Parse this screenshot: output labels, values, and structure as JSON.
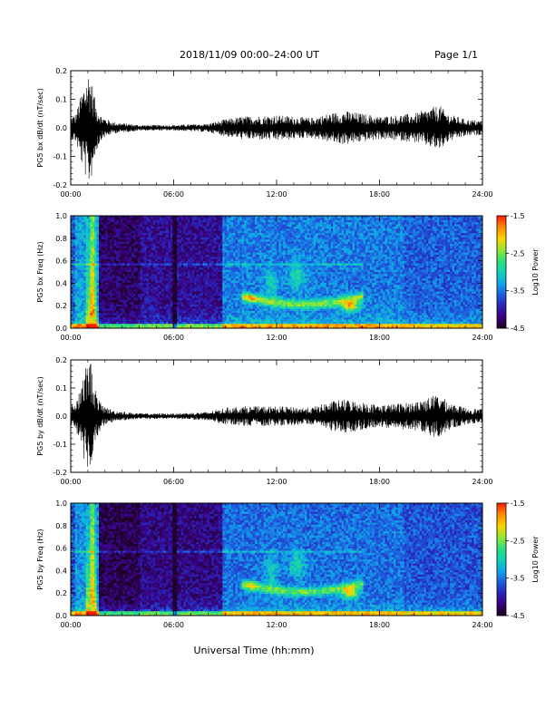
{
  "header": {
    "title": "2018/11/09  00:00–24:00 UT",
    "page": "Page 1/1"
  },
  "chart_data": [
    {
      "type": "line",
      "panel": "bx-waveform",
      "title": "",
      "ylabel": "PG5 bx dB/dt (nT/sec)",
      "ylim": [
        -0.2,
        0.2
      ],
      "yticks": [
        "0.2",
        "0.1",
        "0.0",
        "-0.1",
        "-0.2"
      ],
      "xlim": [
        "00:00",
        "24:00"
      ],
      "xticks": [
        "00:00",
        "06:00",
        "12:00",
        "18:00",
        "24:00"
      ],
      "series": [
        {
          "x_hours": [
            0,
            0.3,
            0.6,
            0.8,
            1.0,
            1.15,
            1.3,
            1.5,
            1.8,
            2.5,
            4,
            6,
            8,
            9,
            10,
            12,
            14,
            15,
            16,
            17,
            18,
            20,
            21,
            21.5,
            22,
            23,
            24
          ],
          "envelope": [
            0.04,
            0.05,
            0.12,
            0.16,
            0.2,
            0.2,
            0.14,
            0.08,
            0.04,
            0.02,
            0.01,
            0.01,
            0.015,
            0.03,
            0.04,
            0.045,
            0.035,
            0.05,
            0.06,
            0.05,
            0.04,
            0.05,
            0.07,
            0.08,
            0.05,
            0.03,
            0.025
          ]
        }
      ]
    },
    {
      "type": "heatmap",
      "panel": "bx-spectrogram",
      "title": "",
      "ylabel": "PG5 bx Freq (Hz)",
      "ylim": [
        0.0,
        1.0
      ],
      "yticks": [
        "1.0",
        "0.8",
        "0.6",
        "0.4",
        "0.2",
        "0.0"
      ],
      "xlim": [
        "00:00",
        "24:00"
      ],
      "xticks": [
        "00:00",
        "06:00",
        "12:00",
        "18:00",
        "24:00"
      ],
      "colorbar": {
        "label": "Log10 Power",
        "range": [
          -4.5,
          -1.5
        ],
        "ticks": [
          "-1.5",
          "-2.5",
          "-3.5",
          "-4.5"
        ]
      }
    },
    {
      "type": "line",
      "panel": "by-waveform",
      "title": "",
      "ylabel": "PG5 by dB/dt (nT/sec)",
      "ylim": [
        -0.2,
        0.2
      ],
      "yticks": [
        "0.2",
        "0.1",
        "0.0",
        "-0.1",
        "-0.2"
      ],
      "xlim": [
        "00:00",
        "24:00"
      ],
      "xticks": [
        "00:00",
        "06:00",
        "12:00",
        "18:00",
        "24:00"
      ],
      "series": [
        {
          "x_hours": [
            0,
            0.3,
            0.6,
            0.8,
            1.0,
            1.15,
            1.3,
            1.5,
            1.8,
            2.5,
            4,
            6,
            8,
            9,
            10,
            12,
            14,
            15,
            16,
            17,
            18,
            20,
            21,
            21.5,
            22,
            23,
            24
          ],
          "envelope": [
            0.04,
            0.05,
            0.12,
            0.16,
            0.2,
            0.2,
            0.14,
            0.08,
            0.04,
            0.02,
            0.01,
            0.01,
            0.015,
            0.03,
            0.035,
            0.035,
            0.03,
            0.05,
            0.06,
            0.05,
            0.04,
            0.05,
            0.07,
            0.08,
            0.05,
            0.03,
            0.025
          ]
        }
      ]
    },
    {
      "type": "heatmap",
      "panel": "by-spectrogram",
      "title": "",
      "ylabel": "PG5 by Freq (Hz)",
      "ylim": [
        0.0,
        1.0
      ],
      "yticks": [
        "1.0",
        "0.8",
        "0.6",
        "0.4",
        "0.2",
        "0.0"
      ],
      "xlim": [
        "00:00",
        "24:00"
      ],
      "xticks": [
        "00:00",
        "06:00",
        "12:00",
        "18:00",
        "24:00"
      ],
      "colorbar": {
        "label": "Log10 Power",
        "range": [
          -4.5,
          -1.5
        ],
        "ticks": [
          "-1.5",
          "-2.5",
          "-3.5",
          "-4.5"
        ]
      }
    }
  ],
  "footer": {
    "xlabel": "Universal Time (hh:mm)"
  },
  "colors": {
    "trace": "#000000",
    "colormap": [
      "#1a001f",
      "#3a007a",
      "#2a22b8",
      "#1e5fe0",
      "#10a6e8",
      "#13d2b6",
      "#2fe07a",
      "#98e830",
      "#ffd200",
      "#ff8a00",
      "#ff1a00"
    ]
  }
}
